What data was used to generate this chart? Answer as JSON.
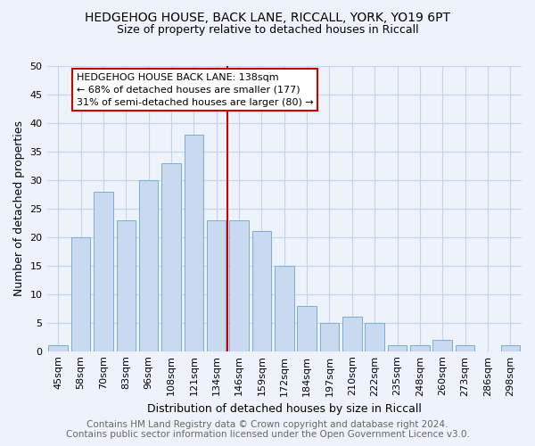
{
  "title": "HEDGEHOG HOUSE, BACK LANE, RICCALL, YORK, YO19 6PT",
  "subtitle": "Size of property relative to detached houses in Riccall",
  "xlabel": "Distribution of detached houses by size in Riccall",
  "ylabel": "Number of detached properties",
  "categories": [
    "45sqm",
    "58sqm",
    "70sqm",
    "83sqm",
    "96sqm",
    "108sqm",
    "121sqm",
    "134sqm",
    "146sqm",
    "159sqm",
    "172sqm",
    "184sqm",
    "197sqm",
    "210sqm",
    "222sqm",
    "235sqm",
    "248sqm",
    "260sqm",
    "273sqm",
    "286sqm",
    "298sqm"
  ],
  "values": [
    1,
    20,
    28,
    23,
    30,
    33,
    38,
    23,
    23,
    21,
    15,
    8,
    5,
    6,
    5,
    1,
    1,
    2,
    1,
    0,
    1
  ],
  "bar_color": "#c8d9f0",
  "bar_edge_color": "#7aaed6",
  "grid_color": "#c8d4e8",
  "background_color": "#edf2fb",
  "vline_x_index": 7,
  "vline_color": "#cc0000",
  "annotation_box_text": "HEDGEHOG HOUSE BACK LANE: 138sqm\n← 68% of detached houses are smaller (177)\n31% of semi-detached houses are larger (80) →",
  "annotation_box_color": "white",
  "annotation_box_edge_color": "#cc0000",
  "footer_text": "Contains HM Land Registry data © Crown copyright and database right 2024.\nContains public sector information licensed under the Open Government Licence v3.0.",
  "ylim": [
    0,
    50
  ],
  "yticks": [
    0,
    5,
    10,
    15,
    20,
    25,
    30,
    35,
    40,
    45,
    50
  ],
  "title_fontsize": 10,
  "subtitle_fontsize": 9,
  "ylabel_fontsize": 9,
  "xlabel_fontsize": 9,
  "tick_fontsize": 8,
  "footer_fontsize": 7.5,
  "annotation_fontsize": 8
}
